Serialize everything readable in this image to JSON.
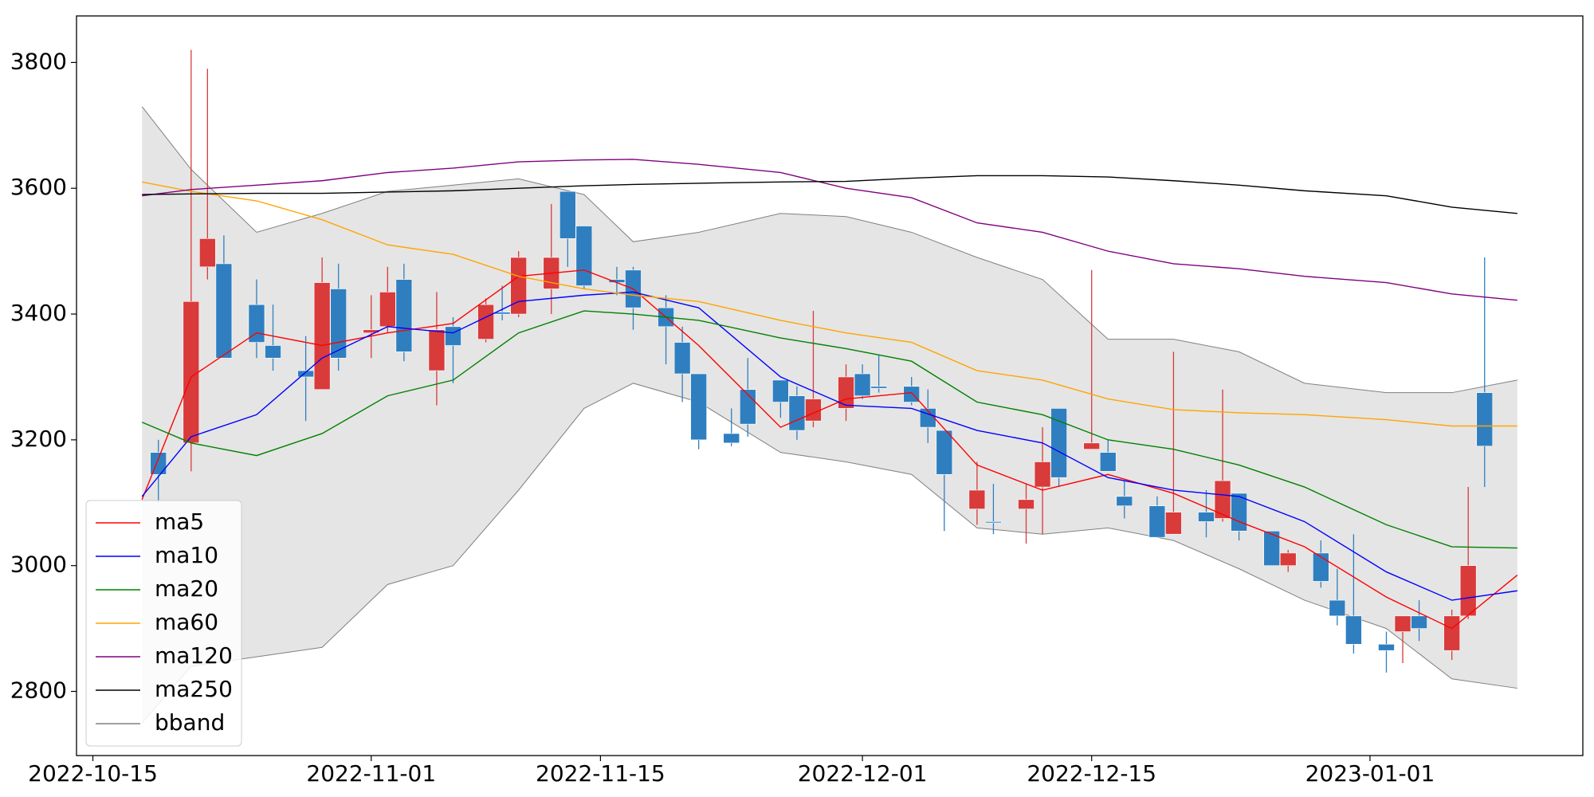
{
  "chart_data": {
    "type": "candlestick",
    "up_color": "#d93a3a",
    "down_color": "#2f7fc0",
    "candles": {
      "x": [
        "2022-10-19",
        "2022-10-21",
        "2022-10-22",
        "2022-10-23",
        "2022-10-25",
        "2022-10-26",
        "2022-10-28",
        "2022-10-29",
        "2022-10-30",
        "2022-11-01",
        "2022-11-02",
        "2022-11-03",
        "2022-11-05",
        "2022-11-06",
        "2022-11-08",
        "2022-11-09",
        "2022-11-10",
        "2022-11-12",
        "2022-11-13",
        "2022-11-14",
        "2022-11-16",
        "2022-11-17",
        "2022-11-19",
        "2022-11-20",
        "2022-11-21",
        "2022-11-23",
        "2022-11-24",
        "2022-11-26",
        "2022-11-27",
        "2022-11-28",
        "2022-11-30",
        "2022-12-01",
        "2022-12-02",
        "2022-12-04",
        "2022-12-05",
        "2022-12-06",
        "2022-12-08",
        "2022-12-09",
        "2022-12-11",
        "2022-12-12",
        "2022-12-13",
        "2022-12-15",
        "2022-12-16",
        "2022-12-17",
        "2022-12-19",
        "2022-12-20",
        "2022-12-22",
        "2022-12-23",
        "2022-12-24",
        "2022-12-26",
        "2022-12-27",
        "2022-12-29",
        "2022-12-30",
        "2022-12-31",
        "2023-01-02",
        "2023-01-03",
        "2023-01-04",
        "2023-01-06",
        "2023-01-07",
        "2023-01-08"
      ],
      "open": [
        3180,
        3195,
        3475,
        3480,
        3415,
        3350,
        3310,
        3280,
        3440,
        3370,
        3380,
        3455,
        3310,
        3380,
        3360,
        3403,
        3400,
        3440,
        3595,
        3540,
        3455,
        3470,
        3410,
        3355,
        3305,
        3210,
        3280,
        3295,
        3270,
        3230,
        3250,
        3305,
        3285,
        3285,
        3250,
        3215,
        3090,
        3070,
        3090,
        3125,
        3250,
        3185,
        3180,
        3110,
        3095,
        3050,
        3085,
        3075,
        3115,
        3055,
        3000,
        3020,
        2945,
        2920,
        2875,
        2895,
        2920,
        2865,
        2920,
        3275
      ],
      "high": [
        3200,
        3820,
        3790,
        3525,
        3455,
        3415,
        3365,
        3490,
        3480,
        3430,
        3475,
        3480,
        3435,
        3395,
        3425,
        3445,
        3500,
        3575,
        3595,
        3540,
        3475,
        3475,
        3430,
        3380,
        3305,
        3250,
        3330,
        3295,
        3285,
        3405,
        3320,
        3320,
        3335,
        3300,
        3280,
        3215,
        3165,
        3130,
        3130,
        3220,
        3250,
        3470,
        3200,
        3135,
        3110,
        3340,
        3120,
        3280,
        3115,
        3055,
        3025,
        3040,
        2995,
        3050,
        2895,
        2920,
        2945,
        2930,
        3125,
        3490
      ],
      "low": [
        3100,
        3150,
        3455,
        3330,
        3330,
        3310,
        3230,
        3280,
        3310,
        3330,
        3370,
        3325,
        3255,
        3290,
        3355,
        3390,
        3395,
        3400,
        3475,
        3440,
        3430,
        3375,
        3320,
        3260,
        3185,
        3190,
        3205,
        3235,
        3200,
        3220,
        3230,
        3265,
        3275,
        3255,
        3195,
        3055,
        3065,
        3050,
        3035,
        3050,
        3125,
        3185,
        3150,
        3075,
        3045,
        3050,
        3045,
        3070,
        3040,
        3000,
        2990,
        2965,
        2905,
        2860,
        2830,
        2845,
        2880,
        2850,
        2915,
        3125
      ],
      "close": [
        3145,
        3420,
        3520,
        3330,
        3355,
        3330,
        3300,
        3450,
        3330,
        3375,
        3435,
        3340,
        3375,
        3350,
        3415,
        3400,
        3490,
        3490,
        3520,
        3445,
        3450,
        3410,
        3380,
        3305,
        3200,
        3195,
        3225,
        3260,
        3215,
        3265,
        3300,
        3270,
        3282,
        3260,
        3220,
        3145,
        3120,
        3068,
        3105,
        3165,
        3140,
        3195,
        3150,
        3095,
        3045,
        3085,
        3070,
        3135,
        3055,
        3000,
        3020,
        2975,
        2920,
        2875,
        2865,
        2920,
        2900,
        2920,
        3000,
        3190
      ]
    },
    "lines_x": [
      "2022-10-18",
      "2022-10-21",
      "2022-10-25",
      "2022-10-29",
      "2022-11-02",
      "2022-11-06",
      "2022-11-10",
      "2022-11-14",
      "2022-11-17",
      "2022-11-21",
      "2022-11-26",
      "2022-11-30",
      "2022-12-04",
      "2022-12-08",
      "2022-12-12",
      "2022-12-16",
      "2022-12-20",
      "2022-12-24",
      "2022-12-28",
      "2023-01-02",
      "2023-01-06",
      "2023-01-10"
    ],
    "series": [
      {
        "name": "ma5",
        "color": "#ff0000",
        "values": [
          3105,
          3300,
          3370,
          3350,
          3370,
          3385,
          3460,
          3470,
          3440,
          3350,
          3220,
          3265,
          3275,
          3160,
          3120,
          3145,
          3115,
          3070,
          3030,
          2950,
          2900,
          2985
        ]
      },
      {
        "name": "ma10",
        "color": "#0000ff",
        "values": [
          3110,
          3205,
          3240,
          3330,
          3380,
          3370,
          3420,
          3430,
          3435,
          3410,
          3300,
          3255,
          3250,
          3215,
          3195,
          3140,
          3120,
          3110,
          3070,
          2990,
          2945,
          2960
        ]
      },
      {
        "name": "ma20",
        "color": "#008000",
        "values": [
          3228,
          3195,
          3175,
          3210,
          3270,
          3295,
          3370,
          3405,
          3400,
          3390,
          3362,
          3345,
          3325,
          3260,
          3240,
          3200,
          3185,
          3160,
          3125,
          3065,
          3030,
          3028
        ]
      },
      {
        "name": "ma60",
        "color": "#ffa500",
        "values": [
          3610,
          3595,
          3580,
          3550,
          3510,
          3495,
          3460,
          3440,
          3430,
          3420,
          3390,
          3370,
          3355,
          3310,
          3295,
          3265,
          3248,
          3243,
          3240,
          3232,
          3222,
          3222
        ]
      },
      {
        "name": "ma120",
        "color": "#800080",
        "values": [
          3588,
          3598,
          3605,
          3612,
          3625,
          3632,
          3642,
          3645,
          3646,
          3638,
          3625,
          3600,
          3585,
          3545,
          3530,
          3500,
          3480,
          3472,
          3460,
          3450,
          3432,
          3422
        ]
      },
      {
        "name": "ma250",
        "color": "#000000",
        "values": [
          3590,
          3591,
          3592,
          3592,
          3594,
          3596,
          3600,
          3604,
          3606,
          3608,
          3610,
          3611,
          3616,
          3620,
          3620,
          3618,
          3612,
          3605,
          3596,
          3588,
          3570,
          3560
        ]
      }
    ],
    "bband": {
      "name": "bband",
      "color": "#808080",
      "fill": "#e5e5e5",
      "upper": [
        3730,
        3630,
        3530,
        3560,
        3595,
        3605,
        3615,
        3590,
        3515,
        3530,
        3560,
        3555,
        3530,
        3490,
        3455,
        3360,
        3360,
        3340,
        3290,
        3275,
        3275,
        3295
      ],
      "lower": [
        2750,
        2840,
        2855,
        2870,
        2970,
        3000,
        3120,
        3250,
        3290,
        3260,
        3180,
        3165,
        3145,
        3060,
        3050,
        3060,
        3040,
        2995,
        2945,
        2900,
        2820,
        2805
      ]
    },
    "xlim": [
      "2022-10-14",
      "2023-01-14"
    ],
    "xticks": [
      "2022-10-15",
      "2022-11-01",
      "2022-11-15",
      "2022-12-01",
      "2022-12-15",
      "2023-01-01"
    ],
    "ylim": [
      2698,
      3874
    ],
    "yticks": [
      2800,
      3000,
      3200,
      3400,
      3600,
      3800
    ],
    "legend": "lower left"
  }
}
